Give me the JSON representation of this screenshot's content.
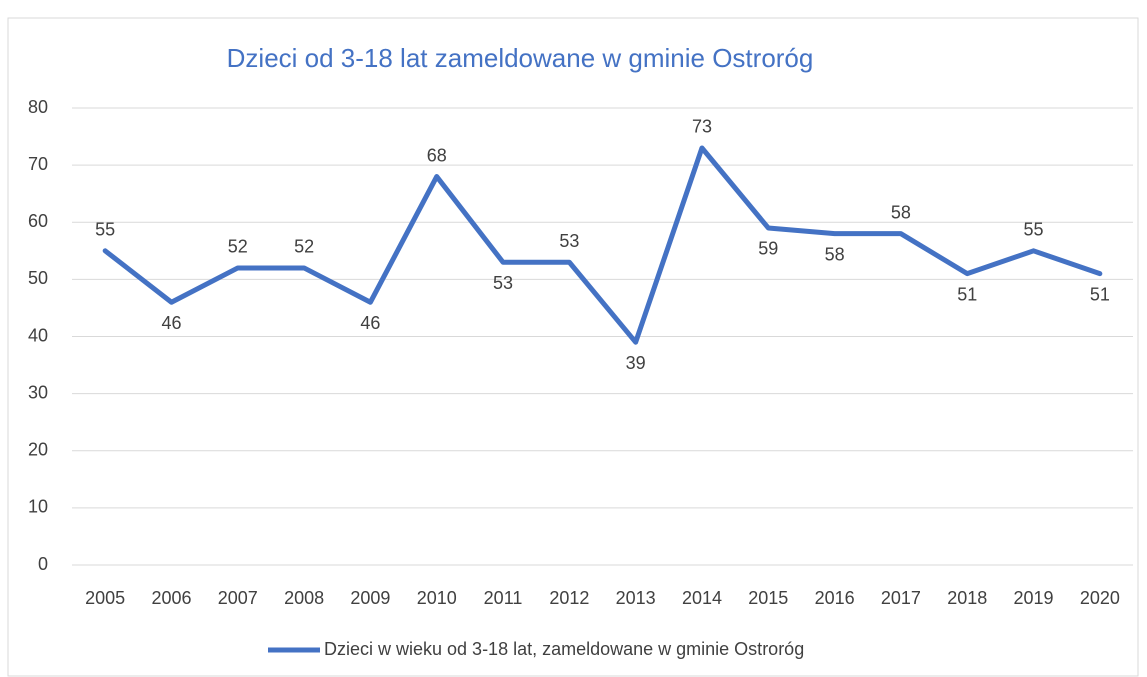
{
  "chart_data": {
    "type": "line",
    "title": "Dzieci od 3-18 lat zameldowane w gminie Ostroróg",
    "categories": [
      "2005",
      "2006",
      "2007",
      "2008",
      "2009",
      "2010",
      "2011",
      "2012",
      "2013",
      "2014",
      "2015",
      "2016",
      "2017",
      "2018",
      "2019",
      "2020"
    ],
    "series": [
      {
        "name": "Dzieci w wieku od 3-18 lat, zameldowane w gminie Ostroróg",
        "color": "#4472c4",
        "values": [
          55,
          46,
          52,
          52,
          46,
          68,
          53,
          53,
          39,
          73,
          59,
          58,
          58,
          51,
          55,
          51
        ]
      }
    ],
    "ylim": [
      0,
      80
    ],
    "yticks": [
      0,
      10,
      20,
      30,
      40,
      50,
      60,
      70,
      80
    ],
    "grid": true,
    "legend": "bottom"
  }
}
